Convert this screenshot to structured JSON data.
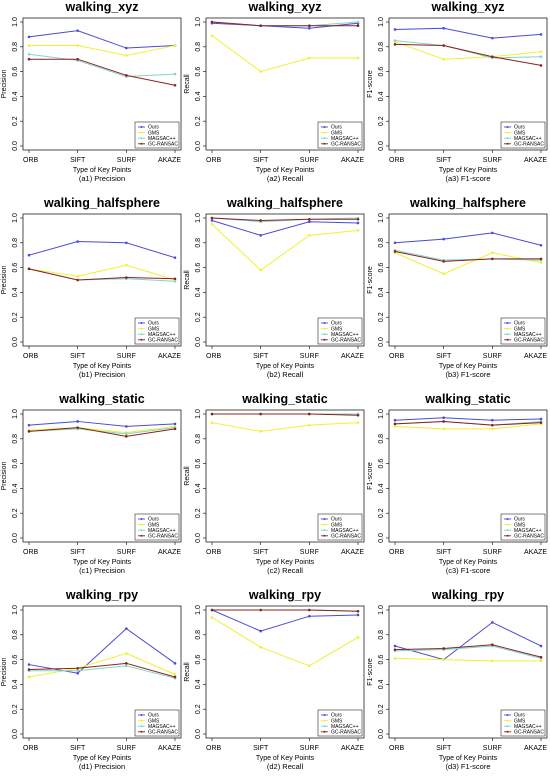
{
  "colors": {
    "Ours": "#4a4ad8",
    "GMS": "#f0f032",
    "MAGSAC++": "#7fd6c8",
    "GC-RANSAC": "#8b2020"
  },
  "chart_data": [
    {
      "type": "line",
      "title": "walking_xyz",
      "caption": "(a1) Precision",
      "xlabel": "Type of Key Points",
      "ylabel": "Precision",
      "categories": [
        "ORB",
        "SIFT",
        "SURF",
        "AKAZE"
      ],
      "ylim": [
        0,
        1
      ],
      "yticks": [
        "0.0",
        "0.2",
        "0.4",
        "0.6",
        "0.8",
        "1.0"
      ],
      "legend": {
        "position": "bottom-right",
        "entries": [
          "Ours",
          "GMS",
          "MAGSAC++",
          "GC-RANSAC"
        ]
      },
      "series": [
        {
          "name": "Ours",
          "values": [
            0.88,
            0.93,
            0.79,
            0.81
          ]
        },
        {
          "name": "GMS",
          "values": [
            0.81,
            0.81,
            0.73,
            0.81
          ]
        },
        {
          "name": "MAGSAC++",
          "values": [
            0.74,
            0.69,
            0.56,
            0.58
          ]
        },
        {
          "name": "GC-RANSAC",
          "values": [
            0.7,
            0.7,
            0.57,
            0.49
          ]
        }
      ]
    },
    {
      "type": "line",
      "title": "walking_xyz",
      "caption": "(a2) Recall",
      "xlabel": "Type of Key Points",
      "ylabel": "Recall",
      "categories": [
        "ORB",
        "SIFT",
        "SURF",
        "AKAZE"
      ],
      "ylim": [
        0,
        1
      ],
      "yticks": [
        "0.0",
        "0.2",
        "0.4",
        "0.6",
        "0.8",
        "1.0"
      ],
      "legend": {
        "position": "bottom-right",
        "entries": [
          "Ours",
          "GMS",
          "MAGSAC++",
          "GC-RANSAC"
        ]
      },
      "series": [
        {
          "name": "Ours",
          "values": [
            0.99,
            0.97,
            0.95,
            0.99
          ]
        },
        {
          "name": "GMS",
          "values": [
            0.89,
            0.6,
            0.71,
            0.71
          ]
        },
        {
          "name": "MAGSAC++",
          "values": [
            1.0,
            0.97,
            0.97,
            1.0
          ]
        },
        {
          "name": "GC-RANSAC",
          "values": [
            1.0,
            0.97,
            0.97,
            0.97
          ]
        }
      ]
    },
    {
      "type": "line",
      "title": "walking_xyz",
      "caption": "(a3) F1-score",
      "xlabel": "Type of Key Points",
      "ylabel": "F1-score",
      "categories": [
        "ORB",
        "SIFT",
        "SURF",
        "AKAZE"
      ],
      "ylim": [
        0,
        1
      ],
      "yticks": [
        "0.0",
        "0.2",
        "0.4",
        "0.6",
        "0.8",
        "1.0"
      ],
      "legend": {
        "position": "bottom-right",
        "entries": [
          "Ours",
          "GMS",
          "MAGSAC++",
          "GC-RANSAC"
        ]
      },
      "series": [
        {
          "name": "Ours",
          "values": [
            0.94,
            0.95,
            0.87,
            0.9
          ]
        },
        {
          "name": "GMS",
          "values": [
            0.84,
            0.7,
            0.72,
            0.76
          ]
        },
        {
          "name": "MAGSAC++",
          "values": [
            0.85,
            0.81,
            0.71,
            0.72
          ]
        },
        {
          "name": "GC-RANSAC",
          "values": [
            0.82,
            0.81,
            0.72,
            0.65
          ]
        }
      ]
    },
    {
      "type": "line",
      "title": "walking_halfsphere",
      "caption": "(b1) Precision",
      "xlabel": "Type of Key Points",
      "ylabel": "Precision",
      "categories": [
        "ORB",
        "SIFT",
        "SURF",
        "AKAZE"
      ],
      "ylim": [
        0,
        1
      ],
      "yticks": [
        "0.0",
        "0.2",
        "0.4",
        "0.6",
        "0.8",
        "1.0"
      ],
      "legend": {
        "position": "bottom-right",
        "entries": [
          "Ours",
          "GMS",
          "MAGSAC++",
          "GC-RANSAC"
        ]
      },
      "series": [
        {
          "name": "Ours",
          "values": [
            0.7,
            0.81,
            0.8,
            0.68
          ]
        },
        {
          "name": "GMS",
          "values": [
            0.59,
            0.53,
            0.62,
            0.5
          ]
        },
        {
          "name": "MAGSAC++",
          "values": [
            0.59,
            0.5,
            0.51,
            0.49
          ]
        },
        {
          "name": "GC-RANSAC",
          "values": [
            0.59,
            0.5,
            0.52,
            0.51
          ]
        }
      ]
    },
    {
      "type": "line",
      "title": "walking_halfsphere",
      "caption": "(b2) Recall",
      "xlabel": "Type of Key Points",
      "ylabel": "Recall",
      "categories": [
        "ORB",
        "SIFT",
        "SURF",
        "AKAZE"
      ],
      "ylim": [
        0,
        1
      ],
      "yticks": [
        "0.0",
        "0.2",
        "0.4",
        "0.6",
        "0.8",
        "1.0"
      ],
      "legend": {
        "position": "bottom-right",
        "entries": [
          "Ours",
          "GMS",
          "MAGSAC++",
          "GC-RANSAC"
        ]
      },
      "series": [
        {
          "name": "Ours",
          "values": [
            0.98,
            0.86,
            0.97,
            0.96
          ]
        },
        {
          "name": "GMS",
          "values": [
            0.95,
            0.58,
            0.86,
            0.9
          ]
        },
        {
          "name": "MAGSAC++",
          "values": [
            1.0,
            0.97,
            0.99,
            1.0
          ]
        },
        {
          "name": "GC-RANSAC",
          "values": [
            1.0,
            0.98,
            0.99,
            0.99
          ]
        }
      ]
    },
    {
      "type": "line",
      "title": "walking_halfsphere",
      "caption": "(b3) F1-score",
      "xlabel": "Type of Key Points",
      "ylabel": "F1-score",
      "categories": [
        "ORB",
        "SIFT",
        "SURF",
        "AKAZE"
      ],
      "ylim": [
        0,
        1
      ],
      "yticks": [
        "0.0",
        "0.2",
        "0.4",
        "0.6",
        "0.8",
        "1.0"
      ],
      "legend": {
        "position": "bottom-right",
        "entries": [
          "Ours",
          "GMS",
          "MAGSAC++",
          "GC-RANSAC"
        ]
      },
      "series": [
        {
          "name": "Ours",
          "values": [
            0.8,
            0.83,
            0.88,
            0.78
          ]
        },
        {
          "name": "GMS",
          "values": [
            0.72,
            0.55,
            0.72,
            0.64
          ]
        },
        {
          "name": "MAGSAC++",
          "values": [
            0.74,
            0.66,
            0.67,
            0.66
          ]
        },
        {
          "name": "GC-RANSAC",
          "values": [
            0.73,
            0.65,
            0.67,
            0.67
          ]
        }
      ]
    },
    {
      "type": "line",
      "title": "walking_static",
      "caption": "(c1) Precision",
      "xlabel": "Type of Key Points",
      "ylabel": "Precision",
      "categories": [
        "ORB",
        "SIFT",
        "SURF",
        "AKAZE"
      ],
      "ylim": [
        0,
        1
      ],
      "yticks": [
        "0.0",
        "0.2",
        "0.4",
        "0.6",
        "0.8",
        "1.0"
      ],
      "legend": {
        "position": "bottom-right",
        "entries": [
          "Ours",
          "GMS",
          "MAGSAC++",
          "GC-RANSAC"
        ]
      },
      "series": [
        {
          "name": "Ours",
          "values": [
            0.91,
            0.94,
            0.9,
            0.92
          ]
        },
        {
          "name": "GMS",
          "values": [
            0.87,
            0.89,
            0.85,
            0.9
          ]
        },
        {
          "name": "MAGSAC++",
          "values": [
            0.86,
            0.88,
            0.84,
            0.89
          ]
        },
        {
          "name": "GC-RANSAC",
          "values": [
            0.86,
            0.89,
            0.82,
            0.88
          ]
        }
      ]
    },
    {
      "type": "line",
      "title": "walking_static",
      "caption": "(c2) Recall",
      "xlabel": "Type of Key Points",
      "ylabel": "Recall",
      "categories": [
        "ORB",
        "SIFT",
        "SURF",
        "AKAZE"
      ],
      "ylim": [
        0,
        1
      ],
      "yticks": [
        "0.0",
        "0.2",
        "0.4",
        "0.6",
        "0.8",
        "1.0"
      ],
      "legend": {
        "position": "bottom-right",
        "entries": [
          "Ours",
          "GMS",
          "MAGSAC++",
          "GC-RANSAC"
        ]
      },
      "series": [
        {
          "name": "Ours",
          "values": [
            1.0,
            1.0,
            1.0,
            1.0
          ]
        },
        {
          "name": "GMS",
          "values": [
            0.93,
            0.86,
            0.91,
            0.93
          ]
        },
        {
          "name": "MAGSAC++",
          "values": [
            1.0,
            1.0,
            1.0,
            1.0
          ]
        },
        {
          "name": "GC-RANSAC",
          "values": [
            1.0,
            1.0,
            1.0,
            0.99
          ]
        }
      ]
    },
    {
      "type": "line",
      "title": "walking_static",
      "caption": "(c3) F1-score",
      "xlabel": "Type of Key Points",
      "ylabel": "F1-score",
      "categories": [
        "ORB",
        "SIFT",
        "SURF",
        "AKAZE"
      ],
      "ylim": [
        0,
        1
      ],
      "yticks": [
        "0.0",
        "0.2",
        "0.4",
        "0.6",
        "0.8",
        "1.0"
      ],
      "legend": {
        "position": "bottom-right",
        "entries": [
          "Ours",
          "GMS",
          "MAGSAC++",
          "GC-RANSAC"
        ]
      },
      "series": [
        {
          "name": "Ours",
          "values": [
            0.95,
            0.97,
            0.95,
            0.96
          ]
        },
        {
          "name": "GMS",
          "values": [
            0.9,
            0.88,
            0.88,
            0.92
          ]
        },
        {
          "name": "MAGSAC++",
          "values": [
            0.92,
            0.94,
            0.91,
            0.94
          ]
        },
        {
          "name": "GC-RANSAC",
          "values": [
            0.92,
            0.94,
            0.91,
            0.93
          ]
        }
      ]
    },
    {
      "type": "line",
      "title": "walking_rpy",
      "caption": "(d1) Precision",
      "xlabel": "Type of Key Points",
      "ylabel": "Precision",
      "categories": [
        "ORB",
        "SIFT",
        "SURF",
        "AKAZE"
      ],
      "ylim": [
        0,
        1
      ],
      "yticks": [
        "0.0",
        "0.2",
        "0.4",
        "0.6",
        "0.8",
        "1.0"
      ],
      "legend": {
        "position": "bottom-right",
        "entries": [
          "Ours",
          "GMS",
          "MAGSAC++",
          "GC-RANSAC"
        ]
      },
      "series": [
        {
          "name": "Ours",
          "values": [
            0.56,
            0.49,
            0.85,
            0.57
          ]
        },
        {
          "name": "GMS",
          "values": [
            0.46,
            0.53,
            0.65,
            0.48
          ]
        },
        {
          "name": "MAGSAC++",
          "values": [
            0.51,
            0.51,
            0.55,
            0.45
          ]
        },
        {
          "name": "GC-RANSAC",
          "values": [
            0.52,
            0.53,
            0.57,
            0.46
          ]
        }
      ]
    },
    {
      "type": "line",
      "title": "walking_rpy",
      "caption": "(d2) Recall",
      "xlabel": "Type of Key Points",
      "ylabel": "Recall",
      "categories": [
        "ORB",
        "SIFT",
        "SURF",
        "AKAZE"
      ],
      "ylim": [
        0,
        1
      ],
      "yticks": [
        "0.0",
        "0.2",
        "0.4",
        "0.6",
        "0.8",
        "1.0"
      ],
      "legend": {
        "position": "bottom-right",
        "entries": [
          "Ours",
          "GMS",
          "MAGSAC++",
          "GC-RANSAC"
        ]
      },
      "series": [
        {
          "name": "Ours",
          "values": [
            1.0,
            0.83,
            0.95,
            0.96
          ]
        },
        {
          "name": "GMS",
          "values": [
            0.94,
            0.7,
            0.55,
            0.78
          ]
        },
        {
          "name": "MAGSAC++",
          "values": [
            1.0,
            1.0,
            1.0,
            0.99
          ]
        },
        {
          "name": "GC-RANSAC",
          "values": [
            1.0,
            1.0,
            1.0,
            0.99
          ]
        }
      ]
    },
    {
      "type": "line",
      "title": "walking_rpy",
      "caption": "(d3) F1-score",
      "xlabel": "Type of Key Points",
      "ylabel": "F1-score",
      "categories": [
        "ORB",
        "SIFT",
        "SURF",
        "AKAZE"
      ],
      "ylim": [
        0,
        1
      ],
      "yticks": [
        "0.0",
        "0.2",
        "0.4",
        "0.6",
        "0.8",
        "1.0"
      ],
      "legend": {
        "position": "bottom-right",
        "entries": [
          "Ours",
          "GMS",
          "MAGSAC++",
          "GC-RANSAC"
        ]
      },
      "series": [
        {
          "name": "Ours",
          "values": [
            0.71,
            0.6,
            0.9,
            0.71
          ]
        },
        {
          "name": "GMS",
          "values": [
            0.61,
            0.6,
            0.59,
            0.59
          ]
        },
        {
          "name": "MAGSAC++",
          "values": [
            0.67,
            0.68,
            0.71,
            0.61
          ]
        },
        {
          "name": "GC-RANSAC",
          "values": [
            0.68,
            0.69,
            0.72,
            0.62
          ]
        }
      ]
    }
  ]
}
